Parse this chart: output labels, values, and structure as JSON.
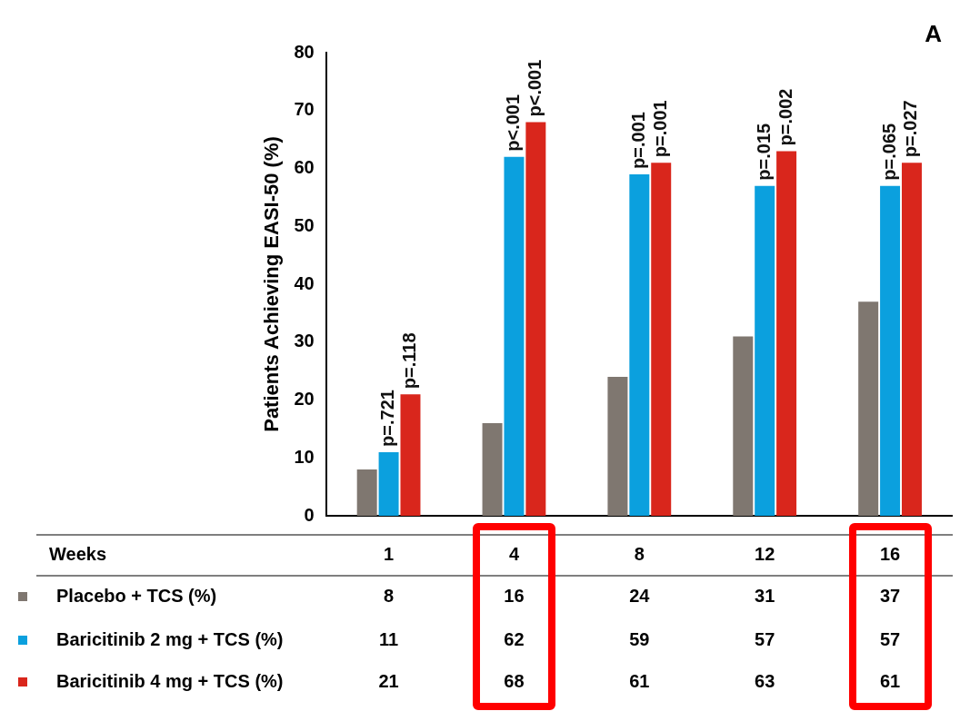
{
  "chart_data": {
    "type": "bar",
    "ylabel": "Patients Achieving EASI-50 (%)",
    "categories": [
      "1",
      "4",
      "8",
      "12",
      "16"
    ],
    "series": [
      {
        "name": "Placebo + TCS (%)",
        "color": "#7f7770",
        "values": [
          8,
          16,
          24,
          31,
          37
        ]
      },
      {
        "name": "Baricitinib 2 mg + TCS (%)",
        "color": "#0ba0de",
        "values": [
          11,
          62,
          59,
          57,
          57
        ]
      },
      {
        "name": "Baricitinib 4 mg + TCS (%)",
        "color": "#d9261c",
        "values": [
          21,
          68,
          61,
          63,
          61
        ]
      }
    ],
    "ylim": [
      0,
      80
    ],
    "yticks": [
      0,
      10,
      20,
      30,
      40,
      50,
      60,
      70,
      80
    ],
    "data_labels": true,
    "legend": "bottom",
    "annotations": [
      "A",
      "Weeks",
      "p=.721",
      "p=.118",
      "p<.001",
      "p<.001",
      "p=.001",
      "p=.001",
      "p=.015",
      "p=.002",
      "p=.065",
      "p=.027"
    ]
  }
}
